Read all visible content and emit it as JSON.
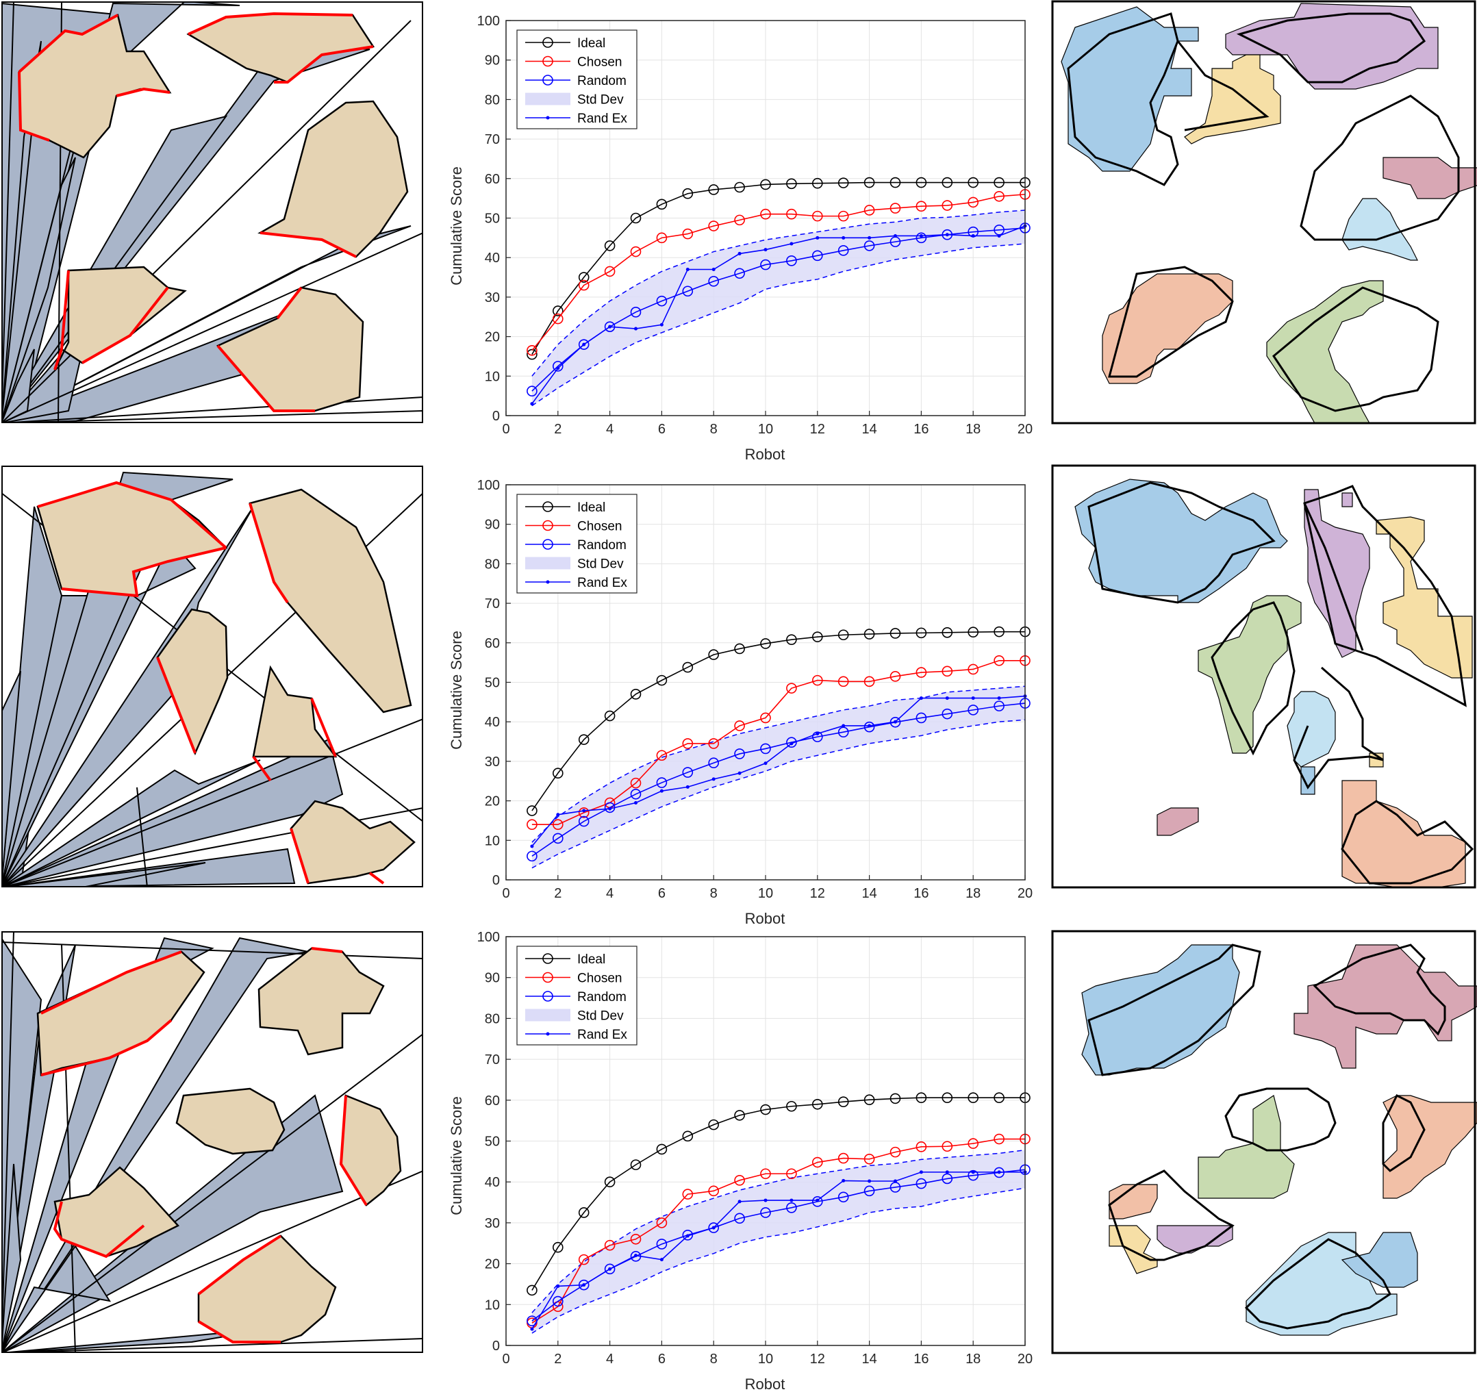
{
  "chart_data": [
    {
      "type": "line",
      "xlabel": "Robot",
      "ylabel": "Cumulative Score",
      "xlim": [
        0,
        20
      ],
      "ylim": [
        0,
        100
      ],
      "xticks": [
        0,
        2,
        4,
        6,
        8,
        10,
        12,
        14,
        16,
        18,
        20
      ],
      "yticks": [
        0,
        10,
        20,
        30,
        40,
        50,
        60,
        70,
        80,
        90,
        100
      ],
      "grid": true,
      "legend_position": "top-left",
      "x": [
        1,
        2,
        3,
        4,
        5,
        6,
        7,
        8,
        9,
        10,
        11,
        12,
        13,
        14,
        15,
        16,
        17,
        18,
        19,
        20
      ],
      "series": [
        {
          "name": "Ideal",
          "color": "#000000",
          "marker": "circle",
          "values": [
            15.5,
            26.5,
            35,
            43,
            50,
            53.5,
            56.2,
            57.2,
            57.8,
            58.5,
            58.7,
            58.8,
            58.9,
            59,
            59,
            59,
            59,
            59,
            59,
            59
          ]
        },
        {
          "name": "Chosen",
          "color": "#ff0000",
          "marker": "circle",
          "values": [
            16.5,
            24.5,
            33,
            36.5,
            41.5,
            45,
            46,
            48,
            49.5,
            51,
            51,
            50.5,
            50.5,
            52,
            52.5,
            53,
            53.2,
            54,
            55.5,
            56
          ]
        },
        {
          "name": "Random",
          "color": "#0000ff",
          "marker": "circle",
          "values": [
            6.2,
            12.5,
            18,
            22.5,
            26.2,
            29,
            31.5,
            34,
            36,
            38.2,
            39.2,
            40.5,
            41.8,
            43,
            44,
            45,
            45.8,
            46.5,
            47,
            47.5
          ]
        },
        {
          "name": "Rand Ex",
          "color": "#0000ff",
          "marker": "dot",
          "values": [
            3,
            12,
            18,
            22.5,
            22,
            23,
            37,
            37,
            41,
            42,
            43.5,
            45,
            45,
            45,
            45.5,
            45.5,
            45.8,
            45.5,
            45.5,
            48
          ]
        }
      ],
      "std_dev": {
        "name": "Std Dev",
        "color": "#dcdcf8",
        "upper": [
          10,
          18,
          24,
          29,
          33,
          36.5,
          39,
          41.5,
          43,
          44.5,
          45.5,
          46.5,
          47.5,
          48.5,
          49,
          50,
          50.2,
          50.8,
          51.5,
          52
        ],
        "lower": [
          2.5,
          7,
          11,
          15,
          18.5,
          21,
          23.5,
          26,
          28.5,
          32,
          33.5,
          34.5,
          36.5,
          38,
          39.5,
          40.5,
          41.5,
          42.5,
          43,
          43.5
        ]
      }
    },
    {
      "type": "line",
      "xlabel": "Robot",
      "ylabel": "Cumulative Score",
      "xlim": [
        0,
        20
      ],
      "ylim": [
        0,
        100
      ],
      "xticks": [
        0,
        2,
        4,
        6,
        8,
        10,
        12,
        14,
        16,
        18,
        20
      ],
      "yticks": [
        0,
        10,
        20,
        30,
        40,
        50,
        60,
        70,
        80,
        90,
        100
      ],
      "grid": true,
      "legend_position": "top-left",
      "x": [
        1,
        2,
        3,
        4,
        5,
        6,
        7,
        8,
        9,
        10,
        11,
        12,
        13,
        14,
        15,
        16,
        17,
        18,
        19,
        20
      ],
      "series": [
        {
          "name": "Ideal",
          "color": "#000000",
          "marker": "circle",
          "values": [
            17.5,
            27,
            35.5,
            41.5,
            47,
            50.5,
            53.8,
            57,
            58.5,
            59.8,
            60.8,
            61.5,
            62,
            62.2,
            62.4,
            62.5,
            62.6,
            62.7,
            62.8,
            62.8
          ]
        },
        {
          "name": "Chosen",
          "color": "#ff0000",
          "marker": "circle",
          "values": [
            14,
            14,
            17,
            19.5,
            24.5,
            31.5,
            34.5,
            34.5,
            39,
            41,
            48.5,
            50.5,
            50.2,
            50.2,
            51.5,
            52.5,
            52.8,
            53.3,
            55.5,
            55.5
          ]
        },
        {
          "name": "Random",
          "color": "#0000ff",
          "marker": "circle",
          "values": [
            6,
            10.5,
            14.8,
            18.3,
            21.7,
            24.6,
            27.2,
            29.6,
            31.9,
            33.2,
            34.8,
            36.2,
            37.4,
            38.7,
            39.9,
            41,
            42,
            43,
            44,
            44.7
          ]
        },
        {
          "name": "Rand Ex",
          "color": "#0000ff",
          "marker": "dot",
          "values": [
            8.5,
            16.5,
            17.5,
            18,
            19.5,
            22.5,
            23.5,
            25.5,
            27,
            29.5,
            34.5,
            37,
            39,
            39,
            40,
            46,
            46,
            46,
            46,
            46.5
          ]
        }
      ],
      "std_dev": {
        "name": "Std Dev",
        "color": "#dcdcf8",
        "upper": [
          9.5,
          16,
          20.5,
          24.5,
          28,
          31,
          33,
          35,
          37,
          38.5,
          40,
          41.5,
          43,
          44,
          45.5,
          46,
          47.5,
          48,
          48.5,
          49
        ]
      },
      "std_dev_lower": [
        3,
        6.5,
        9.5,
        12.5,
        15.5,
        18.5,
        21,
        23.5,
        25.5,
        27.5,
        30,
        31.5,
        33,
        34.5,
        35.5,
        36.5,
        38,
        39,
        40,
        40.5
      ]
    },
    {
      "type": "line",
      "xlabel": "Robot",
      "ylabel": "Cumulative Score",
      "xlim": [
        0,
        20
      ],
      "ylim": [
        0,
        100
      ],
      "xticks": [
        0,
        2,
        4,
        6,
        8,
        10,
        12,
        14,
        16,
        18,
        20
      ],
      "yticks": [
        0,
        10,
        20,
        30,
        40,
        50,
        60,
        70,
        80,
        90,
        100
      ],
      "grid": true,
      "legend_position": "top-left",
      "x": [
        1,
        2,
        3,
        4,
        5,
        6,
        7,
        8,
        9,
        10,
        11,
        12,
        13,
        14,
        15,
        16,
        17,
        18,
        19,
        20
      ],
      "series": [
        {
          "name": "Ideal",
          "color": "#000000",
          "marker": "circle",
          "values": [
            13.5,
            24,
            32.5,
            40,
            44.2,
            48,
            51.2,
            54,
            56.3,
            57.7,
            58.5,
            59,
            59.6,
            60.1,
            60.4,
            60.6,
            60.6,
            60.6,
            60.6,
            60.6
          ]
        },
        {
          "name": "Chosen",
          "color": "#ff0000",
          "marker": "circle",
          "values": [
            5.5,
            9.5,
            21,
            24.5,
            26,
            30,
            37,
            37.8,
            40.4,
            42,
            42,
            44.8,
            45.8,
            45.6,
            47.3,
            48.6,
            48.7,
            49.4,
            50.5,
            50.5
          ]
        },
        {
          "name": "Random",
          "color": "#0000ff",
          "marker": "circle",
          "values": [
            6,
            10.8,
            14.8,
            18.7,
            21.8,
            24.8,
            27,
            28.8,
            31.1,
            32.5,
            33.7,
            35.2,
            36.3,
            37.8,
            38.7,
            39.6,
            40.8,
            41.6,
            42.3,
            43
          ]
        },
        {
          "name": "Rand Ex",
          "color": "#0000ff",
          "marker": "dot",
          "values": [
            4,
            14.5,
            14.8,
            18.7,
            22,
            21,
            26.8,
            28.8,
            35.2,
            35.5,
            35.5,
            35.5,
            40.3,
            40.2,
            40.2,
            42.4,
            42.4,
            42.4,
            42.4,
            42.4
          ]
        }
      ],
      "std_dev": {
        "name": "Std Dev",
        "color": "#dcdcf8",
        "upper": [
          8,
          15,
          20.5,
          24.5,
          28.5,
          31.5,
          34,
          36,
          38,
          39.5,
          41,
          42,
          43,
          44,
          44.5,
          45.5,
          46,
          46.5,
          47,
          47.8
        ]
      },
      "std_dev_lower": [
        3,
        7,
        10,
        12.5,
        15,
        18,
        20.5,
        22.5,
        25,
        26.5,
        27.5,
        29,
        30.5,
        32.5,
        33.5,
        34,
        35.5,
        36.5,
        37.5,
        38.5
      ]
    }
  ],
  "colors": {
    "obstacle": "#e5d3b3",
    "fov": "#a9b5c9",
    "frontier": "#ff0000",
    "region_blue": "#a6cce8",
    "region_purple": "#cfb3d7",
    "region_yellow": "#f6dfa6",
    "region_pink": "#d8a7b4",
    "region_lightblue": "#c3e2f2",
    "region_salmon": "#f2c0a7",
    "region_green": "#c8dbb0"
  }
}
